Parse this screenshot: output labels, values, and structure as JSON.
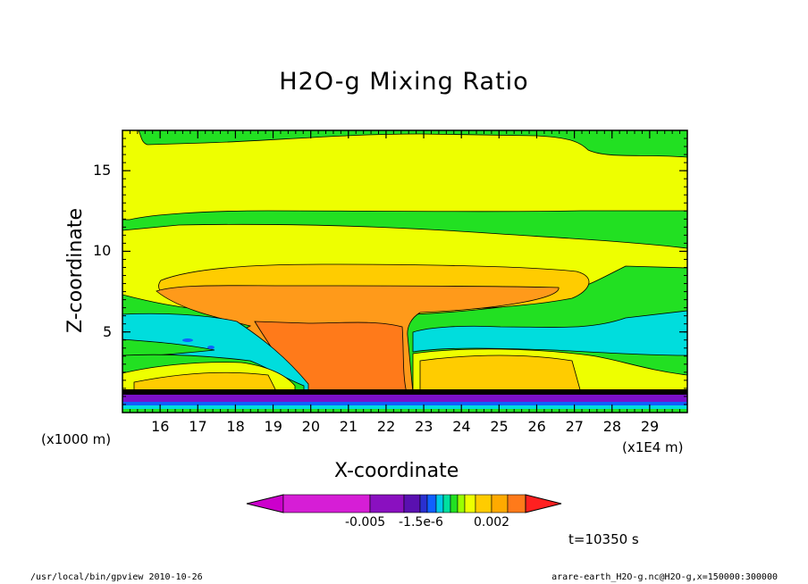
{
  "chart_data": {
    "type": "contour",
    "title": "H2O-g Mixing Ratio",
    "xlabel": "X-coordinate",
    "ylabel": "Z-coordinate",
    "x_unit": "(x1E4 m)",
    "y_unit": "(x1000 m)",
    "x_ticks": [
      16,
      17,
      18,
      19,
      20,
      21,
      22,
      23,
      24,
      25,
      26,
      27,
      28,
      29
    ],
    "y_ticks": [
      5,
      10,
      15
    ],
    "xlim": [
      15,
      30
    ],
    "ylim": [
      0,
      17.5
    ],
    "colorbar_labels": [
      "-0.005",
      "-1.5e-6",
      "0.002"
    ],
    "time_label": "t=10350 s",
    "footer_left": "/usr/local/bin/gpview  2010-10-26",
    "footer_right": "arare-earth_H2O-g.nc@H2O-g,x=150000:300000"
  },
  "colors": {
    "green": "#22e022",
    "yellow": "#eeff00",
    "gold": "#ffcc00",
    "orange": "#ff9a1a",
    "dark_orange": "#ff7a1a",
    "cyan": "#00dddd",
    "blue": "#1060ff",
    "purple": "#7a10c8",
    "magenta": "#cc00cc"
  }
}
